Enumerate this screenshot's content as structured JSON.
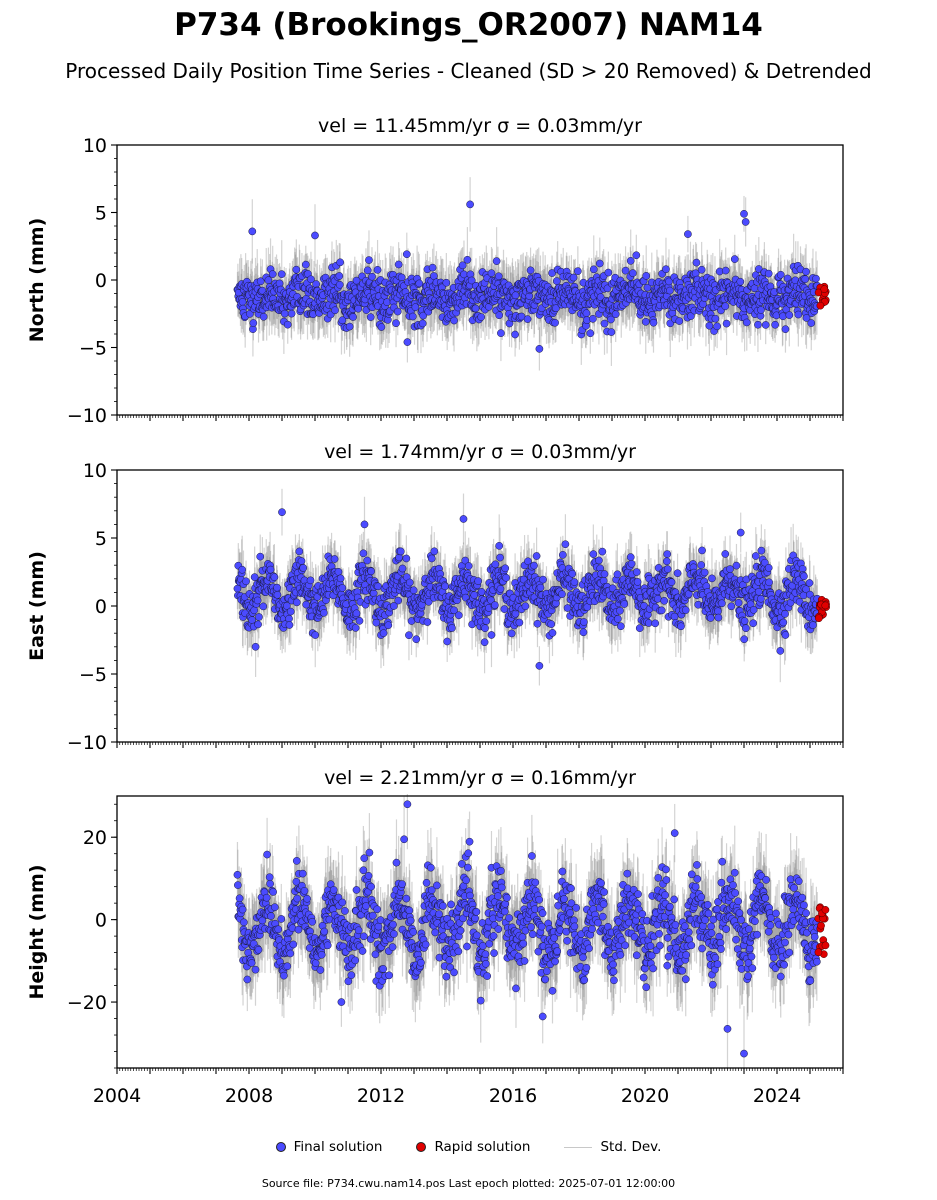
{
  "title": "P734 (Brookings_OR2007) NAM14",
  "subtitle": "Processed Daily Position Time Series - Cleaned (SD > 20 Removed) & Detrended",
  "legend": {
    "final": "Final solution",
    "rapid": "Rapid solution",
    "std": "Std. Dev."
  },
  "source_note": "Source file: P734.cwu.nam14.pos  Last epoch plotted: 2025-07-01 12:00:00",
  "colors": {
    "final": "#4b4bff",
    "rapid": "#e00000",
    "std": "#808080"
  },
  "chart_data": [
    {
      "type": "scatter",
      "panel": "north",
      "title": "vel = 11.45mm/yr   σ = 0.03mm/yr",
      "ylabel": "North (mm)",
      "xlim": [
        2004.0,
        2026.0
      ],
      "ylim": [
        -10,
        10
      ],
      "yticks": [
        -10,
        -5,
        0,
        5,
        10
      ],
      "xticks": [
        2004,
        2008,
        2012,
        2016,
        2020,
        2024
      ],
      "data_start": 2007.65,
      "final_end": 2025.22,
      "rapid_range": [
        2025.25,
        2025.5
      ],
      "baseline": -1.2,
      "noise_sd": 0.9,
      "seasonal_amplitude": 0.4,
      "rapid_range_values": [
        -2.1,
        -0.3
      ],
      "outliers": [
        {
          "x": 2014.7,
          "y": 5.6
        },
        {
          "x": 2023.0,
          "y": 4.9
        },
        {
          "x": 2023.05,
          "y": 4.3
        },
        {
          "x": 2010.0,
          "y": 3.3
        },
        {
          "x": 2021.3,
          "y": 3.4
        },
        {
          "x": 2008.1,
          "y": 3.6
        },
        {
          "x": 2016.8,
          "y": -5.1
        },
        {
          "x": 2012.8,
          "y": -4.6
        }
      ]
    },
    {
      "type": "scatter",
      "panel": "east",
      "title": "vel = 1.74mm/yr   σ = 0.03mm/yr",
      "ylabel": "East (mm)",
      "xlim": [
        2004.0,
        2026.0
      ],
      "ylim": [
        -10,
        10
      ],
      "yticks": [
        -10,
        -5,
        0,
        5,
        10
      ],
      "xticks": [
        2004,
        2008,
        2012,
        2016,
        2020,
        2024
      ],
      "data_start": 2007.65,
      "final_end": 2025.22,
      "rapid_range": [
        2025.25,
        2025.5
      ],
      "baseline": 0.9,
      "noise_sd": 0.9,
      "seasonal_amplitude": 1.2,
      "rapid_range_values": [
        -1.0,
        0.6
      ],
      "outliers": [
        {
          "x": 2009.0,
          "y": 6.9
        },
        {
          "x": 2014.5,
          "y": 6.4
        },
        {
          "x": 2011.5,
          "y": 6.0
        },
        {
          "x": 2022.9,
          "y": 5.4
        },
        {
          "x": 2016.8,
          "y": -4.4
        },
        {
          "x": 2024.1,
          "y": -3.3
        },
        {
          "x": 2008.2,
          "y": -3.0
        }
      ]
    },
    {
      "type": "scatter",
      "panel": "height",
      "title": "vel = 2.21mm/yr   σ = 0.16mm/yr",
      "ylabel": "Height (mm)",
      "xlim": [
        2004.0,
        2026.0
      ],
      "ylim": [
        -36,
        30
      ],
      "yticks": [
        -20,
        0,
        20
      ],
      "xticks": [
        2004,
        2008,
        2012,
        2016,
        2020,
        2024
      ],
      "data_start": 2007.65,
      "final_end": 2025.22,
      "rapid_range": [
        2025.25,
        2025.5
      ],
      "baseline": -1.5,
      "noise_sd": 4.2,
      "seasonal_amplitude": 6.5,
      "rapid_range_values": [
        -8.5,
        3.5
      ],
      "outliers": [
        {
          "x": 2012.8,
          "y": 28.0
        },
        {
          "x": 2012.7,
          "y": 19.5
        },
        {
          "x": 2020.9,
          "y": 21.0
        },
        {
          "x": 2023.0,
          "y": -32.5
        },
        {
          "x": 2022.5,
          "y": -26.5
        },
        {
          "x": 2016.9,
          "y": -23.5
        },
        {
          "x": 2010.8,
          "y": -20.0
        }
      ]
    }
  ]
}
